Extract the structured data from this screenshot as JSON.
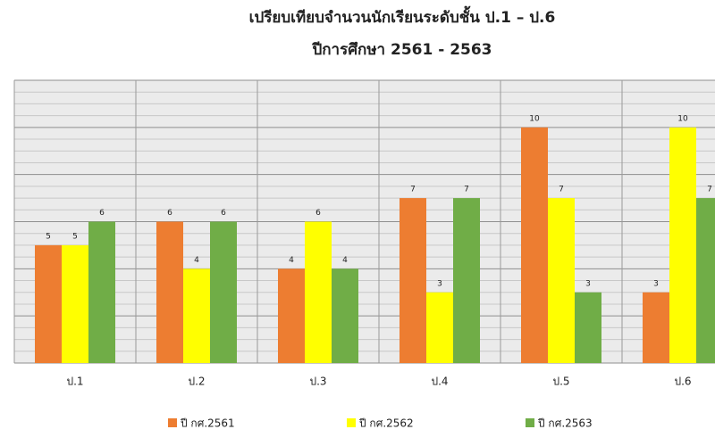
{
  "chart_data": {
    "type": "bar",
    "title": "เปรียบเทียบจำนวนนักเรียนระดับชั้น ป.1 – ป.6",
    "subtitle": "ปีการศึกษา  2561 - 2563",
    "categories": [
      "ป.1",
      "ป.2",
      "ป.3",
      "ป.4",
      "ป.5",
      "ป.6"
    ],
    "series": [
      {
        "name": "ปี กศ.2561",
        "color": "#ed7d31",
        "values": [
          5,
          6,
          4,
          7,
          10,
          3
        ]
      },
      {
        "name": "ปี กศ.2562",
        "color": "#ffff00",
        "values": [
          5,
          4,
          6,
          3,
          7,
          10
        ]
      },
      {
        "name": "ปี กศ.2563",
        "color": "#70ad47",
        "values": [
          6,
          6,
          4,
          7,
          3,
          7
        ]
      }
    ],
    "ylim": [
      0,
      12
    ],
    "yticks": [
      0,
      2,
      4,
      6,
      8,
      10,
      12
    ],
    "yticks_minor": [
      0.5,
      1,
      1.5,
      2.5,
      3,
      3.5,
      4.5,
      5,
      5.5,
      6.5,
      7,
      7.5,
      8.5,
      9,
      9.5,
      10.5,
      11,
      11.5
    ],
    "grid": true,
    "legend": "bottom"
  }
}
